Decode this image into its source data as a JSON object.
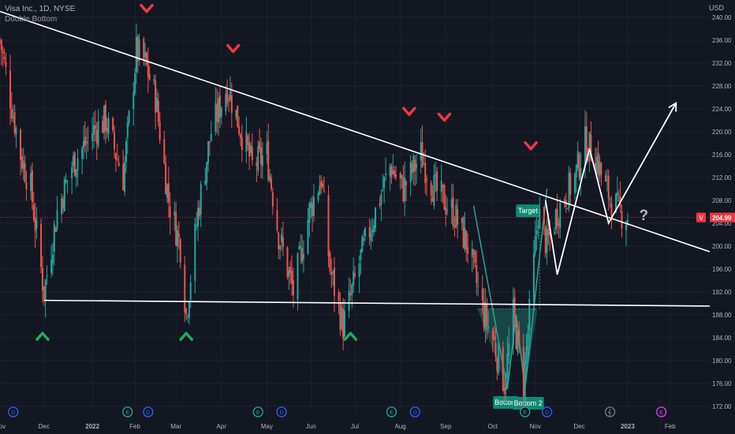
{
  "header": {
    "symbol_title": "Visa Inc., 1D, NYSE",
    "indicator_name": "Double Bottom",
    "currency": "USD"
  },
  "price_tag": {
    "symbol": "V",
    "value": "204.99",
    "value_num": 204.99,
    "color": "#f23645"
  },
  "colors": {
    "up": "#26a69a",
    "down": "#ef5350",
    "background": "#131722",
    "grid": "#1e222d",
    "trend_line": "#ffffff",
    "pattern_fill": "#1e6e64"
  },
  "pattern_labels": {
    "target": "Target",
    "bottom1": "Bottom",
    "bottom2": "Bottom 2"
  },
  "question_mark": "?",
  "event_icons": {
    "earnings_letter": "E",
    "dividend_letter": "D",
    "earnings_dates": [
      "2021-10-27",
      "2022-01-27",
      "2022-04-26",
      "2022-07-26",
      "2022-10-25",
      "2023-01-26"
    ],
    "dividend_dates": [
      "2021-11-10",
      "2022-02-10",
      "2022-05-12",
      "2022-08-11",
      "2022-11-09"
    ],
    "split_icon_date": "2022-12-22"
  },
  "chart_data": {
    "type": "candlestick",
    "title": "Visa Inc., 1D, NYSE",
    "subtitle": "Double Bottom",
    "x_range": [
      "2021-11-01",
      "2023-02-28"
    ],
    "y_range": [
      171,
      243
    ],
    "y_ticks": [
      172,
      176,
      180,
      184,
      188,
      192,
      196,
      200,
      204,
      208,
      212,
      216,
      220,
      224,
      228,
      232,
      236,
      240
    ],
    "x_ticks": [
      {
        "label": "Nov",
        "date": "2021-11-01"
      },
      {
        "label": "Dec",
        "date": "2021-12-01"
      },
      {
        "label": "2022",
        "date": "2022-01-03"
      },
      {
        "label": "Feb",
        "date": "2022-02-01"
      },
      {
        "label": "Mar",
        "date": "2022-03-01"
      },
      {
        "label": "Apr",
        "date": "2022-04-01"
      },
      {
        "label": "May",
        "date": "2022-05-02"
      },
      {
        "label": "Jun",
        "date": "2022-06-01"
      },
      {
        "label": "Jul",
        "date": "2022-07-01"
      },
      {
        "label": "Aug",
        "date": "2022-08-01"
      },
      {
        "label": "Sep",
        "date": "2022-09-01"
      },
      {
        "label": "Oct",
        "date": "2022-10-03"
      },
      {
        "label": "Nov",
        "date": "2022-11-01"
      },
      {
        "label": "Dec",
        "date": "2022-12-01"
      },
      {
        "label": "2023",
        "date": "2023-01-03"
      },
      {
        "label": "Feb",
        "date": "2023-02-01"
      }
    ],
    "price_path": [
      [
        "2021-11-01",
        236
      ],
      [
        "2021-11-08",
        226
      ],
      [
        "2021-11-15",
        216
      ],
      [
        "2021-11-22",
        210
      ],
      [
        "2021-12-01",
        192
      ],
      [
        "2021-12-10",
        206
      ],
      [
        "2021-12-20",
        214
      ],
      [
        "2022-01-03",
        220
      ],
      [
        "2022-01-12",
        222
      ],
      [
        "2022-01-24",
        212
      ],
      [
        "2022-02-02",
        234
      ],
      [
        "2022-02-08",
        232
      ],
      [
        "2022-02-15",
        226
      ],
      [
        "2022-02-24",
        208
      ],
      [
        "2022-03-04",
        200
      ],
      [
        "2022-03-08",
        188
      ],
      [
        "2022-03-16",
        206
      ],
      [
        "2022-03-25",
        220
      ],
      [
        "2022-04-05",
        228
      ],
      [
        "2022-04-12",
        222
      ],
      [
        "2022-04-22",
        214
      ],
      [
        "2022-05-02",
        216
      ],
      [
        "2022-05-10",
        202
      ],
      [
        "2022-05-20",
        192
      ],
      [
        "2022-05-31",
        206
      ],
      [
        "2022-06-08",
        212
      ],
      [
        "2022-06-14",
        196
      ],
      [
        "2022-06-23",
        186
      ],
      [
        "2022-07-05",
        198
      ],
      [
        "2022-07-15",
        206
      ],
      [
        "2022-07-25",
        214
      ],
      [
        "2022-08-03",
        210
      ],
      [
        "2022-08-15",
        216
      ],
      [
        "2022-08-24",
        210
      ],
      [
        "2022-09-06",
        206
      ],
      [
        "2022-09-16",
        200
      ],
      [
        "2022-09-27",
        188
      ],
      [
        "2022-10-03",
        184
      ],
      [
        "2022-10-11",
        176
      ],
      [
        "2022-10-17",
        188
      ],
      [
        "2022-10-24",
        176
      ],
      [
        "2022-10-28",
        188
      ],
      [
        "2022-11-03",
        206
      ],
      [
        "2022-11-09",
        200
      ],
      [
        "2022-11-16",
        206
      ],
      [
        "2022-11-28",
        212
      ],
      [
        "2022-12-05",
        218
      ],
      [
        "2022-12-12",
        216
      ],
      [
        "2022-12-19",
        210
      ],
      [
        "2022-12-28",
        206
      ],
      [
        "2023-01-03",
        205
      ]
    ],
    "resistance_line": {
      "from": {
        "date": "2021-11-01",
        "price": 241
      },
      "to": {
        "date": "2023-02-28",
        "price": 199
      }
    },
    "support_line": {
      "from": {
        "date": "2021-12-01",
        "price": 190.5
      },
      "to": {
        "date": "2023-02-28",
        "price": 189.5
      }
    },
    "double_bottom": {
      "zigzag": [
        [
          "2022-09-20",
          207
        ],
        [
          "2022-10-13",
          175
        ],
        [
          "2022-10-19",
          188
        ],
        [
          "2022-10-25",
          175
        ],
        [
          "2022-11-09",
          210
        ]
      ],
      "neckline_price": 189,
      "target_price": 204.5,
      "target_date": "2022-11-04"
    },
    "projection_path": [
      [
        "2022-11-08",
        208
      ],
      [
        "2022-11-16",
        195
      ],
      [
        "2022-12-08",
        217
      ],
      [
        "2022-12-21",
        204
      ],
      [
        "2023-02-05",
        225
      ]
    ],
    "tops": [
      {
        "date": "2022-02-09",
        "price": 236
      },
      {
        "date": "2022-04-09",
        "price": 229
      },
      {
        "date": "2022-08-07",
        "price": 218
      },
      {
        "date": "2022-08-31",
        "price": 217
      },
      {
        "date": "2022-10-29",
        "price": 212
      }
    ],
    "bottoms": [
      {
        "date": "2021-11-30",
        "price": 190
      },
      {
        "date": "2022-03-08",
        "price": 190
      },
      {
        "date": "2022-06-28",
        "price": 190
      }
    ],
    "current_price": 204.99
  }
}
